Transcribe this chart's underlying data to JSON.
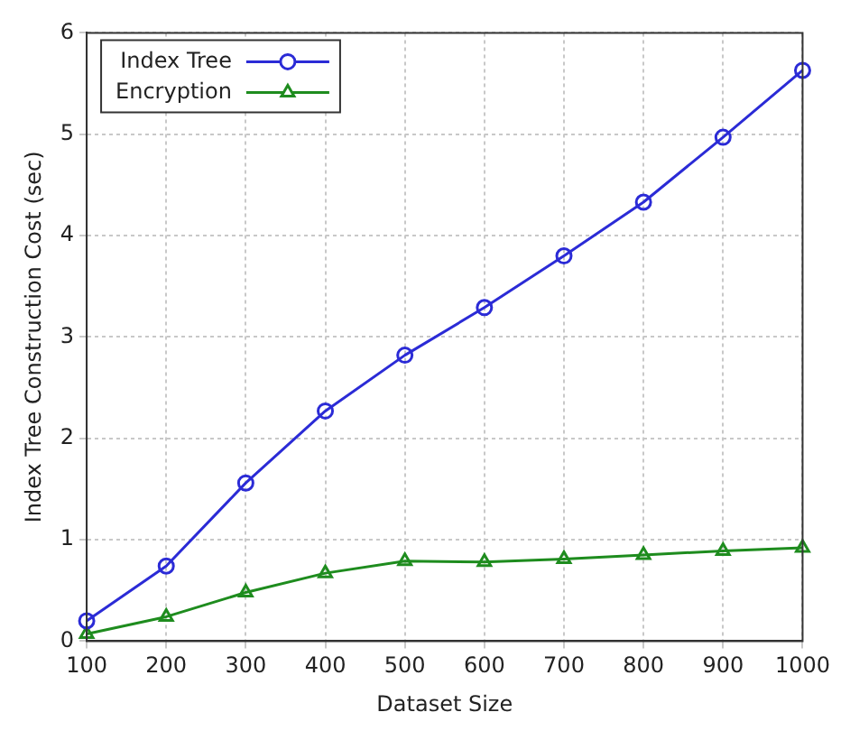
{
  "chart_data": {
    "type": "line",
    "xlabel": "Dataset Size",
    "ylabel": "Index Tree Construction Cost (sec)",
    "x": [
      100,
      200,
      300,
      400,
      500,
      600,
      700,
      800,
      900,
      1000
    ],
    "series": [
      {
        "name": "Index Tree",
        "color": "#2b2bd6",
        "marker": "circle",
        "values": [
          0.2,
          0.74,
          1.56,
          2.27,
          2.82,
          3.29,
          3.8,
          4.33,
          4.97,
          5.63
        ]
      },
      {
        "name": "Encryption",
        "color": "#1e8c1e",
        "marker": "triangle",
        "values": [
          0.07,
          0.24,
          0.48,
          0.67,
          0.79,
          0.78,
          0.81,
          0.85,
          0.89,
          0.92
        ]
      }
    ],
    "xlim": [
      100,
      1000
    ],
    "xticks": [
      100,
      200,
      300,
      400,
      500,
      600,
      700,
      800,
      900,
      1000
    ],
    "ylim": [
      0,
      6
    ],
    "yticks": [
      0,
      1,
      2,
      3,
      4,
      5,
      6
    ],
    "grid": true,
    "legend": "top left",
    "line_style": "solid"
  }
}
